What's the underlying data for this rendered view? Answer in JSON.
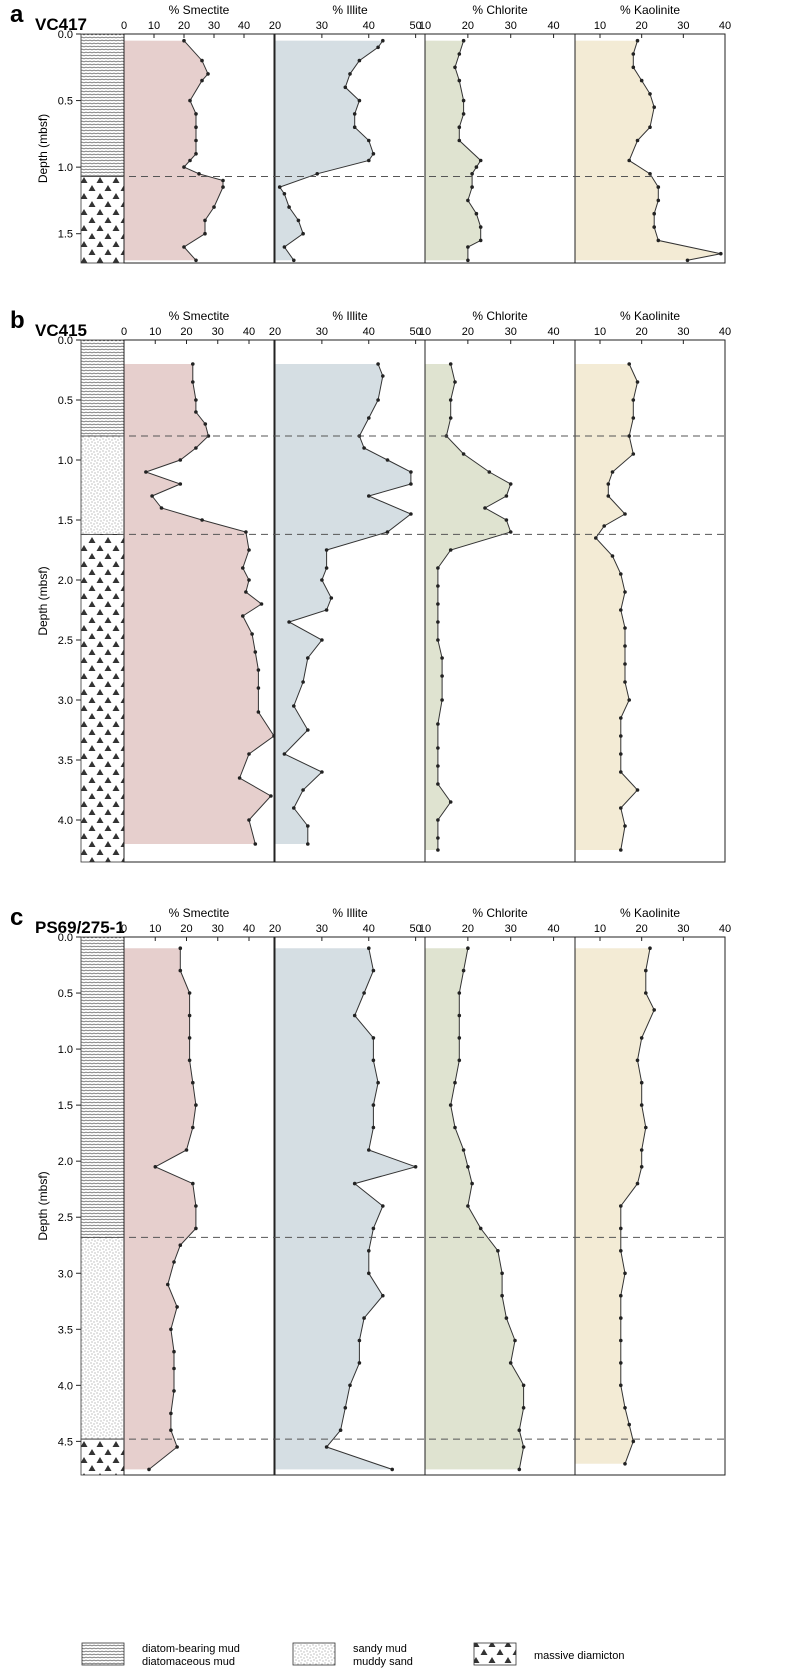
{
  "colors": {
    "smectite": "#e6cfcd",
    "illite": "#d5dee3",
    "chlorite": "#dfe3d0",
    "kaolinite": "#f3ebd5",
    "line": "#333333",
    "boundary": "#555555"
  },
  "legend": [
    {
      "lines": [
        "diatom-bearing mud",
        "diatomaceous mud"
      ],
      "pattern": "diatom"
    },
    {
      "lines": [
        "sandy mud",
        "muddy sand"
      ],
      "pattern": "sandy"
    },
    {
      "lines": [
        "massive diamicton"
      ],
      "pattern": "diamicton"
    }
  ],
  "chart_data": [
    {
      "type": "line",
      "panel": "a",
      "core": "VC417",
      "ylabel": "Depth (mbsf)",
      "ylim": [
        0.0,
        1.72
      ],
      "yticks": [
        0.0,
        0.5,
        1.0,
        1.5
      ],
      "boundaries": [
        1.07
      ],
      "lithology": [
        {
          "pattern": "diatom",
          "top": 0.0,
          "bottom": 1.07
        },
        {
          "pattern": "diamicton",
          "top": 1.07,
          "bottom": 1.72
        }
      ],
      "tracks": [
        {
          "title": "% Smectite",
          "xlim": [
            0,
            50
          ],
          "xticks": [
            0,
            10,
            20,
            30,
            40
          ],
          "depths": [
            0.05,
            0.2,
            0.3,
            0.35,
            0.5,
            0.6,
            0.7,
            0.8,
            0.9,
            0.95,
            1.0,
            1.05,
            1.1,
            1.15,
            1.3,
            1.4,
            1.5,
            1.6,
            1.7
          ],
          "values": [
            20,
            26,
            28,
            26,
            22,
            24,
            24,
            24,
            24,
            22,
            20,
            25,
            33,
            33,
            30,
            27,
            27,
            20,
            24
          ]
        },
        {
          "title": "% Illite",
          "xlim": [
            20,
            52
          ],
          "xticks": [
            20,
            30,
            40,
            50
          ],
          "depths": [
            0.05,
            0.1,
            0.2,
            0.3,
            0.4,
            0.5,
            0.6,
            0.7,
            0.8,
            0.9,
            0.95,
            1.05,
            1.15,
            1.2,
            1.3,
            1.4,
            1.5,
            1.6,
            1.7
          ],
          "values": [
            43,
            42,
            38,
            36,
            35,
            38,
            37,
            37,
            40,
            41,
            40,
            29,
            21,
            22,
            23,
            25,
            26,
            22,
            24
          ]
        },
        {
          "title": "% Chlorite",
          "xlim": [
            10,
            45
          ],
          "xticks": [
            10,
            20,
            30,
            40
          ],
          "depths": [
            0.05,
            0.15,
            0.25,
            0.35,
            0.5,
            0.6,
            0.7,
            0.8,
            0.95,
            1.0,
            1.05,
            1.15,
            1.25,
            1.35,
            1.45,
            1.55,
            1.6,
            1.7
          ],
          "values": [
            19,
            18,
            17,
            18,
            19,
            19,
            18,
            18,
            23,
            22,
            21,
            21,
            20,
            22,
            23,
            23,
            20,
            20
          ]
        },
        {
          "title": "% Kaolinite",
          "xlim": [
            4,
            40
          ],
          "xticks": [
            10,
            20,
            30,
            40
          ],
          "depths": [
            0.05,
            0.15,
            0.25,
            0.35,
            0.45,
            0.55,
            0.7,
            0.8,
            0.95,
            1.05,
            1.15,
            1.25,
            1.35,
            1.45,
            1.55,
            1.65,
            1.7
          ],
          "values": [
            19,
            18,
            18,
            20,
            22,
            23,
            22,
            19,
            17,
            22,
            24,
            24,
            23,
            23,
            24,
            39,
            31
          ]
        }
      ]
    },
    {
      "type": "line",
      "panel": "b",
      "core": "VC415",
      "ylabel": "Depth (mbsf)",
      "ylim": [
        0.0,
        4.35
      ],
      "yticks": [
        0.0,
        0.5,
        1.0,
        1.5,
        2.0,
        2.5,
        3.0,
        3.5,
        4.0
      ],
      "boundaries": [
        0.8,
        1.62
      ],
      "lithology": [
        {
          "pattern": "diatom",
          "top": 0.0,
          "bottom": 0.8
        },
        {
          "pattern": "sandy",
          "top": 0.8,
          "bottom": 1.62
        },
        {
          "pattern": "diamicton",
          "top": 1.62,
          "bottom": 4.35
        }
      ],
      "tracks": [
        {
          "title": "% Smectite",
          "xlim": [
            0,
            48
          ],
          "xticks": [
            0,
            10,
            20,
            30,
            40
          ],
          "depths": [
            0.2,
            0.35,
            0.5,
            0.6,
            0.7,
            0.8,
            0.9,
            1.0,
            1.1,
            1.2,
            1.3,
            1.4,
            1.5,
            1.6,
            1.75,
            1.9,
            2.0,
            2.1,
            2.2,
            2.3,
            2.45,
            2.6,
            2.75,
            2.9,
            3.1,
            3.3,
            3.45,
            3.65,
            3.8,
            4.0,
            4.2
          ],
          "values": [
            22,
            22,
            23,
            23,
            26,
            27,
            23,
            18,
            7,
            18,
            9,
            12,
            25,
            39,
            40,
            38,
            40,
            39,
            44,
            38,
            41,
            42,
            43,
            43,
            43,
            48,
            40,
            37,
            47,
            40,
            42
          ]
        },
        {
          "title": "% Illite",
          "xlim": [
            20,
            52
          ],
          "xticks": [
            20,
            30,
            40,
            50
          ],
          "depths": [
            0.2,
            0.3,
            0.5,
            0.65,
            0.8,
            0.9,
            1.0,
            1.1,
            1.2,
            1.3,
            1.45,
            1.6,
            1.75,
            1.9,
            2.0,
            2.15,
            2.25,
            2.35,
            2.5,
            2.65,
            2.85,
            3.05,
            3.25,
            3.45,
            3.6,
            3.75,
            3.9,
            4.05,
            4.2
          ],
          "values": [
            42,
            43,
            42,
            40,
            38,
            39,
            44,
            49,
            49,
            40,
            49,
            44,
            31,
            31,
            30,
            32,
            31,
            23,
            30,
            27,
            26,
            24,
            27,
            22,
            30,
            26,
            24,
            27,
            27
          ]
        },
        {
          "title": "% Chlorite",
          "xlim": [
            10,
            45
          ],
          "xticks": [
            10,
            20,
            30,
            40
          ],
          "depths": [
            0.2,
            0.35,
            0.5,
            0.65,
            0.8,
            0.95,
            1.1,
            1.2,
            1.3,
            1.4,
            1.5,
            1.6,
            1.75,
            1.9,
            2.05,
            2.2,
            2.35,
            2.5,
            2.65,
            2.8,
            3.0,
            3.2,
            3.4,
            3.55,
            3.7,
            3.85,
            4.0,
            4.15,
            4.25
          ],
          "values": [
            16,
            17,
            16,
            16,
            15,
            19,
            25,
            30,
            29,
            24,
            29,
            30,
            16,
            13,
            13,
            13,
            13,
            13,
            14,
            14,
            14,
            13,
            13,
            13,
            13,
            16,
            13,
            13,
            13
          ]
        },
        {
          "title": "% Kaolinite",
          "xlim": [
            4,
            40
          ],
          "xticks": [
            10,
            20,
            30,
            40
          ],
          "depths": [
            0.2,
            0.35,
            0.5,
            0.65,
            0.8,
            0.95,
            1.1,
            1.2,
            1.3,
            1.45,
            1.55,
            1.65,
            1.8,
            1.95,
            2.1,
            2.25,
            2.4,
            2.55,
            2.7,
            2.85,
            3.0,
            3.15,
            3.3,
            3.45,
            3.6,
            3.75,
            3.9,
            4.05,
            4.25
          ],
          "values": [
            17,
            19,
            18,
            18,
            17,
            18,
            13,
            12,
            12,
            16,
            11,
            9,
            13,
            15,
            16,
            15,
            16,
            16,
            16,
            16,
            17,
            15,
            15,
            15,
            15,
            19,
            15,
            16,
            15
          ]
        }
      ]
    },
    {
      "type": "line",
      "panel": "c",
      "core": "PS69/275-1",
      "ylabel": "Depth (mbsf)",
      "ylim": [
        0.0,
        4.8
      ],
      "yticks": [
        0.0,
        0.5,
        1.0,
        1.5,
        2.0,
        2.5,
        3.0,
        3.5,
        4.0,
        4.5
      ],
      "boundaries": [
        2.68,
        4.48
      ],
      "lithology": [
        {
          "pattern": "diatom",
          "top": 0.0,
          "bottom": 2.68
        },
        {
          "pattern": "sandy",
          "top": 2.68,
          "bottom": 4.48
        },
        {
          "pattern": "diamicton",
          "top": 4.48,
          "bottom": 4.8
        }
      ],
      "tracks": [
        {
          "title": "% Smectite",
          "xlim": [
            0,
            48
          ],
          "xticks": [
            0,
            10,
            20,
            30,
            40
          ],
          "depths": [
            0.1,
            0.3,
            0.5,
            0.7,
            0.9,
            1.1,
            1.3,
            1.5,
            1.7,
            1.9,
            2.05,
            2.2,
            2.4,
            2.6,
            2.75,
            2.9,
            3.1,
            3.3,
            3.5,
            3.7,
            3.85,
            4.05,
            4.25,
            4.4,
            4.55,
            4.75
          ],
          "values": [
            18,
            18,
            21,
            21,
            21,
            21,
            22,
            23,
            22,
            20,
            10,
            22,
            23,
            23,
            18,
            16,
            14,
            17,
            15,
            16,
            16,
            16,
            15,
            15,
            17,
            8
          ]
        },
        {
          "title": "% Illite",
          "xlim": [
            20,
            52
          ],
          "xticks": [
            20,
            30,
            40,
            50
          ],
          "depths": [
            0.1,
            0.3,
            0.5,
            0.7,
            0.9,
            1.1,
            1.3,
            1.5,
            1.7,
            1.9,
            2.05,
            2.2,
            2.4,
            2.6,
            2.8,
            3.0,
            3.2,
            3.4,
            3.6,
            3.8,
            4.0,
            4.2,
            4.4,
            4.55,
            4.75
          ],
          "values": [
            40,
            41,
            39,
            37,
            41,
            41,
            42,
            41,
            41,
            40,
            50,
            37,
            43,
            41,
            40,
            40,
            43,
            39,
            38,
            38,
            36,
            35,
            34,
            31,
            45
          ]
        },
        {
          "title": "% Chlorite",
          "xlim": [
            10,
            45
          ],
          "xticks": [
            10,
            20,
            30,
            40
          ],
          "depths": [
            0.1,
            0.3,
            0.5,
            0.7,
            0.9,
            1.1,
            1.3,
            1.5,
            1.7,
            1.9,
            2.05,
            2.2,
            2.4,
            2.6,
            2.8,
            3.0,
            3.2,
            3.4,
            3.6,
            3.8,
            4.0,
            4.2,
            4.4,
            4.55,
            4.75
          ],
          "values": [
            20,
            19,
            18,
            18,
            18,
            18,
            17,
            16,
            17,
            19,
            20,
            21,
            20,
            23,
            27,
            28,
            28,
            29,
            31,
            30,
            33,
            33,
            32,
            33,
            32
          ]
        },
        {
          "title": "% Kaolinite",
          "xlim": [
            4,
            40
          ],
          "xticks": [
            10,
            20,
            30,
            40
          ],
          "depths": [
            0.1,
            0.3,
            0.5,
            0.65,
            0.9,
            1.1,
            1.3,
            1.5,
            1.7,
            1.9,
            2.05,
            2.2,
            2.4,
            2.6,
            2.8,
            3.0,
            3.2,
            3.4,
            3.6,
            3.8,
            4.0,
            4.2,
            4.35,
            4.5,
            4.7
          ],
          "values": [
            22,
            21,
            21,
            23,
            20,
            19,
            20,
            20,
            21,
            20,
            20,
            19,
            15,
            15,
            15,
            16,
            15,
            15,
            15,
            15,
            15,
            16,
            17,
            18,
            16
          ]
        }
      ]
    }
  ]
}
